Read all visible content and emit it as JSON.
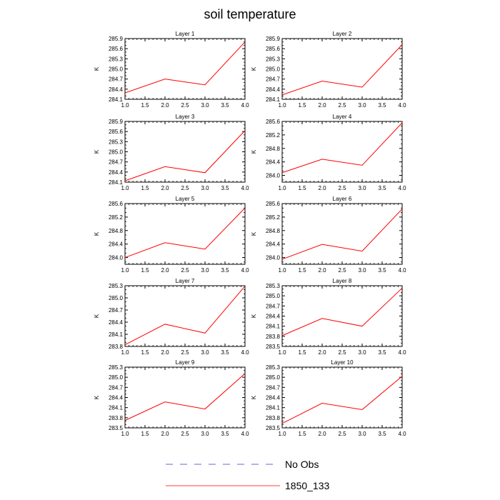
{
  "title": "soil temperature",
  "chart_data": {
    "type": "line",
    "x": [
      1.0,
      2.0,
      3.0,
      4.0
    ],
    "xlim": [
      1.0,
      4.0
    ],
    "xticks": [
      "1.0",
      "1.5",
      "2.0",
      "2.5",
      "3.0",
      "3.5",
      "4.0"
    ],
    "ylabel": "K",
    "panels": [
      {
        "title": "Layer 1",
        "ylim": [
          284.1,
          285.9
        ],
        "yticks": [
          "284.1",
          "284.4",
          "284.7",
          "285.0",
          "285.3",
          "285.6",
          "285.9"
        ],
        "values": [
          284.29,
          284.7,
          284.53,
          285.8
        ]
      },
      {
        "title": "Layer 2",
        "ylim": [
          284.1,
          285.9
        ],
        "yticks": [
          "284.1",
          "284.4",
          "284.7",
          "285.0",
          "285.3",
          "285.6",
          "285.9"
        ],
        "values": [
          284.23,
          284.64,
          284.46,
          285.72
        ]
      },
      {
        "title": "Layer 3",
        "ylim": [
          284.1,
          285.9
        ],
        "yticks": [
          "284.1",
          "284.4",
          "284.7",
          "285.0",
          "285.3",
          "285.6",
          "285.9"
        ],
        "values": [
          284.14,
          284.56,
          284.38,
          285.63
        ]
      },
      {
        "title": "Layer 4",
        "ylim": [
          283.8,
          285.6
        ],
        "yticks": [
          "284.0",
          "284.4",
          "284.8",
          "285.2",
          "285.6"
        ],
        "values": [
          284.08,
          284.48,
          284.3,
          285.56
        ]
      },
      {
        "title": "Layer 5",
        "ylim": [
          283.8,
          285.6
        ],
        "yticks": [
          "284.0",
          "284.4",
          "284.8",
          "285.2",
          "285.6"
        ],
        "values": [
          284.0,
          284.44,
          284.25,
          285.47
        ]
      },
      {
        "title": "Layer 6",
        "ylim": [
          283.8,
          285.6
        ],
        "yticks": [
          "284.0",
          "284.4",
          "284.8",
          "285.2",
          "285.6"
        ],
        "values": [
          283.95,
          284.39,
          284.19,
          285.44
        ]
      },
      {
        "title": "Layer 7",
        "ylim": [
          283.8,
          285.3
        ],
        "yticks": [
          "283.8",
          "284.1",
          "284.4",
          "284.7",
          "285.0",
          "285.3"
        ],
        "values": [
          283.84,
          284.35,
          284.13,
          285.29
        ]
      },
      {
        "title": "Layer 8",
        "ylim": [
          283.5,
          285.3
        ],
        "yticks": [
          "283.5",
          "283.8",
          "284.1",
          "284.4",
          "284.7",
          "285.0",
          "285.3"
        ],
        "values": [
          283.82,
          284.33,
          284.1,
          285.23
        ]
      },
      {
        "title": "Layer 9",
        "ylim": [
          283.5,
          285.3
        ],
        "yticks": [
          "283.5",
          "283.8",
          "284.1",
          "284.4",
          "284.7",
          "285.0",
          "285.3"
        ],
        "values": [
          283.72,
          284.27,
          284.06,
          285.11
        ]
      },
      {
        "title": "Layer 10",
        "ylim": [
          283.5,
          285.3
        ],
        "yticks": [
          "283.5",
          "283.8",
          "284.1",
          "284.4",
          "284.7",
          "285.0",
          "285.3"
        ],
        "values": [
          283.63,
          284.23,
          284.04,
          285.03
        ]
      }
    ],
    "legend": [
      {
        "name": "No Obs",
        "color": "#3333cc",
        "dashed": true
      },
      {
        "name": "1850_133",
        "color": "#ff0000",
        "dashed": false
      }
    ]
  }
}
